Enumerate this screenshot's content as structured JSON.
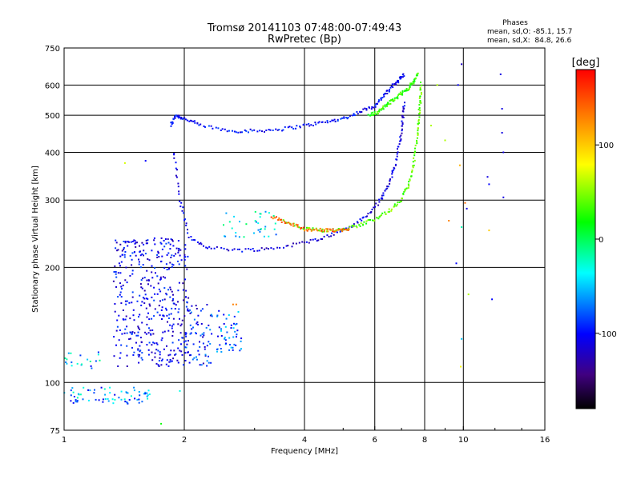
{
  "chart_data": {
    "type": "scatter",
    "title_line1": "Tromsø 20141103 07:48:00-07:49:43",
    "title_line2": "RwPretec (Bp)",
    "xlabel": "Frequency [MHz]",
    "ylabel": "Stationary phase Virtual Height [km]",
    "x_scale": "log",
    "y_scale": "log",
    "xlim": [
      1,
      16
    ],
    "ylim": [
      75,
      750
    ],
    "x_ticks": [
      1,
      2,
      4,
      6,
      8,
      10,
      16
    ],
    "x_tick_labels": [
      "1",
      "2",
      "4",
      "6",
      "8",
      "10",
      "16"
    ],
    "y_ticks": [
      75,
      100,
      200,
      300,
      400,
      500,
      600,
      750
    ],
    "y_tick_labels": [
      "75",
      "100",
      "200",
      "300",
      "400",
      "500",
      "600",
      "750"
    ],
    "grid": true,
    "phases": {
      "title": "Phases",
      "line1": "mean, sd,O: -85.1, 15.7",
      "line2": "mean, sd,X:  84.8, 26.6"
    },
    "colorbar": {
      "unit": "[deg]",
      "range": [
        -180,
        180
      ],
      "tick_values": [
        100,
        0,
        -100
      ],
      "tick_labels": [
        "100",
        "0",
        "-100"
      ],
      "colormap": "rainbow"
    },
    "traces": [
      {
        "x": [
          1.85,
          1.9,
          2.0,
          2.2,
          2.6,
          3.0,
          3.5,
          4.0,
          4.5,
          5.0,
          5.5,
          6.0,
          6.3,
          6.6,
          6.9,
          7.1
        ],
        "y": [
          470,
          500,
          490,
          470,
          455,
          455,
          460,
          470,
          480,
          490,
          510,
          530,
          560,
          590,
          620,
          640
        ],
        "phase": -100
      },
      {
        "x": [
          1.88,
          1.95,
          2.05,
          2.3,
          2.8,
          3.3,
          4.0,
          4.6,
          5.2,
          5.8,
          6.2,
          6.5,
          6.75,
          6.95,
          7.05,
          7.1
        ],
        "y": [
          400,
          300,
          240,
          225,
          222,
          224,
          232,
          242,
          255,
          275,
          300,
          330,
          370,
          430,
          490,
          540
        ],
        "phase": -110
      },
      {
        "x": [
          3.5,
          4.0,
          4.5,
          5.0,
          5.5,
          6.0,
          6.5,
          7.0,
          7.3,
          7.5,
          7.65,
          7.75,
          7.8,
          7.85
        ],
        "y": [
          265,
          252,
          250,
          252,
          258,
          268,
          280,
          300,
          330,
          370,
          430,
          490,
          550,
          610
        ],
        "phase": 40
      },
      {
        "x": [
          5.8,
          6.1,
          6.4,
          6.7,
          7.0,
          7.3,
          7.5,
          7.7
        ],
        "y": [
          500,
          510,
          530,
          550,
          570,
          590,
          610,
          640
        ],
        "phase": 30
      },
      {
        "x": [
          3.3,
          3.6,
          4.0,
          4.4,
          4.8,
          5.2
        ],
        "y": [
          272,
          262,
          252,
          250,
          250,
          251
        ],
        "phase": 140
      }
    ],
    "scatter_points": [
      {
        "x": 1.42,
        "y": 375,
        "phase": 70
      },
      {
        "x": 1.6,
        "y": 380,
        "phase": -100
      },
      {
        "x": 1.75,
        "y": 78,
        "phase": 20
      },
      {
        "x": 1.95,
        "y": 95,
        "phase": -30
      },
      {
        "x": 2.65,
        "y": 160,
        "phase": 130
      },
      {
        "x": 2.7,
        "y": 160,
        "phase": 130
      },
      {
        "x": 8.3,
        "y": 470,
        "phase": 60
      },
      {
        "x": 8.6,
        "y": 600,
        "phase": 60
      },
      {
        "x": 9.0,
        "y": 430,
        "phase": 60
      },
      {
        "x": 9.2,
        "y": 265,
        "phase": 130
      },
      {
        "x": 9.6,
        "y": 205,
        "phase": -100
      },
      {
        "x": 9.7,
        "y": 600,
        "phase": -100
      },
      {
        "x": 9.9,
        "y": 680,
        "phase": -120
      },
      {
        "x": 9.8,
        "y": 370,
        "phase": 110
      },
      {
        "x": 9.9,
        "y": 255,
        "phase": -20
      },
      {
        "x": 9.9,
        "y": 130,
        "phase": -50
      },
      {
        "x": 9.85,
        "y": 110,
        "phase": 80
      },
      {
        "x": 10.1,
        "y": 295,
        "phase": 140
      },
      {
        "x": 10.2,
        "y": 285,
        "phase": -110
      },
      {
        "x": 10.3,
        "y": 170,
        "phase": 60
      },
      {
        "x": 11.5,
        "y": 345,
        "phase": -110
      },
      {
        "x": 11.6,
        "y": 330,
        "phase": -100
      },
      {
        "x": 11.6,
        "y": 250,
        "phase": 100
      },
      {
        "x": 11.8,
        "y": 165,
        "phase": -100
      },
      {
        "x": 12.4,
        "y": 640,
        "phase": -110
      },
      {
        "x": 12.5,
        "y": 520,
        "phase": -110
      },
      {
        "x": 12.5,
        "y": 450,
        "phase": -110
      },
      {
        "x": 12.6,
        "y": 400,
        "phase": -110
      },
      {
        "x": 12.6,
        "y": 305,
        "phase": -110
      }
    ],
    "clouds": [
      {
        "x_range": [
          1.33,
          2.05
        ],
        "y_range": [
          110,
          240
        ],
        "count": 420,
        "phase_range": [
          -130,
          -80
        ]
      },
      {
        "x_range": [
          1.0,
          1.25
        ],
        "y_range": [
          108,
          120
        ],
        "count": 20,
        "phase_range": [
          -110,
          -10
        ]
      },
      {
        "x_range": [
          1.0,
          1.65
        ],
        "y_range": [
          88,
          97
        ],
        "count": 70,
        "phase_range": [
          -110,
          -20
        ]
      },
      {
        "x_range": [
          2.0,
          2.35
        ],
        "y_range": [
          110,
          160
        ],
        "count": 70,
        "phase_range": [
          -130,
          -60
        ]
      },
      {
        "x_range": [
          2.4,
          2.8
        ],
        "y_range": [
          118,
          155
        ],
        "count": 50,
        "phase_range": [
          -110,
          -40
        ]
      },
      {
        "x_range": [
          2.5,
          3.4
        ],
        "y_range": [
          240,
          280
        ],
        "count": 35,
        "phase_range": [
          -80,
          0
        ]
      }
    ]
  }
}
